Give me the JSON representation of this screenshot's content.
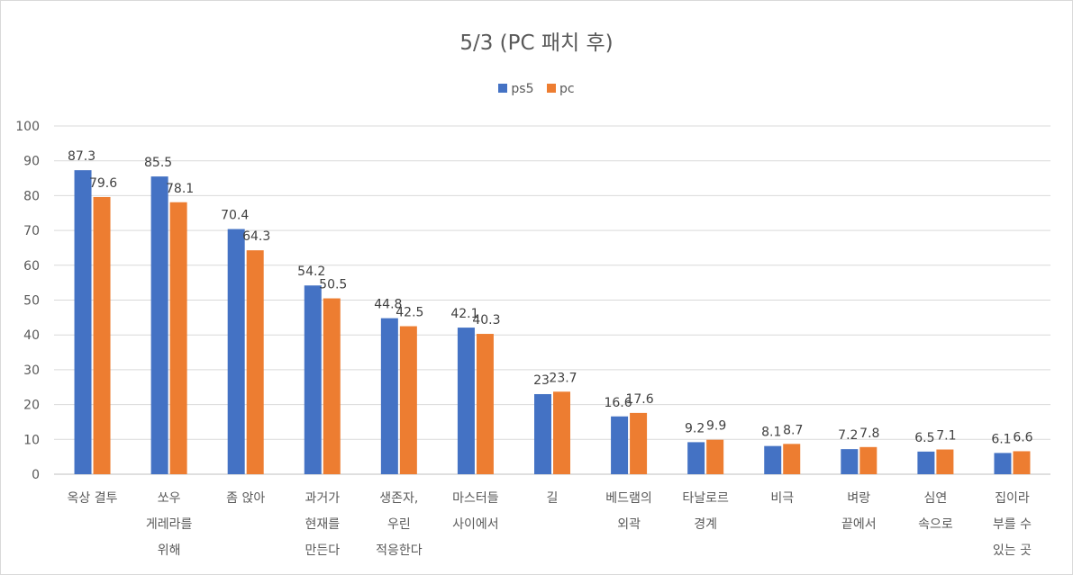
{
  "chart_data": {
    "type": "bar",
    "title": "5/3 (PC 패치 후)",
    "categories": [
      [
        "옥상 결투"
      ],
      [
        "쏘우",
        "게레라를",
        "위해"
      ],
      [
        "좀 앉아"
      ],
      [
        "과거가",
        "현재를",
        "만든다"
      ],
      [
        "생존자,",
        "우린",
        "적응한다"
      ],
      [
        "마스터들",
        "사이에서"
      ],
      [
        "길"
      ],
      [
        "베드램의",
        "외곽"
      ],
      [
        "타날로르",
        "경계"
      ],
      [
        "비극"
      ],
      [
        "벼랑",
        "끝에서"
      ],
      [
        "심연",
        "속으로"
      ],
      [
        "집이라",
        "부를 수",
        "있는 곳"
      ]
    ],
    "series": [
      {
        "name": "ps5",
        "color": "#4472c4",
        "values": [
          87.3,
          85.5,
          70.4,
          54.2,
          44.8,
          42.1,
          23,
          16.6,
          9.2,
          8.1,
          7.2,
          6.5,
          6.1
        ]
      },
      {
        "name": "pc",
        "color": "#ed7d31",
        "values": [
          79.6,
          78.1,
          64.3,
          50.5,
          42.5,
          40.3,
          23.7,
          17.6,
          9.9,
          8.7,
          7.8,
          7.1,
          6.6
        ]
      }
    ],
    "ylim": [
      0,
      100
    ],
    "yticks": [
      0,
      10,
      20,
      30,
      40,
      50,
      60,
      70,
      80,
      90,
      100
    ],
    "grid": true,
    "legend_position": "top-center",
    "xlabel": "",
    "ylabel": ""
  }
}
